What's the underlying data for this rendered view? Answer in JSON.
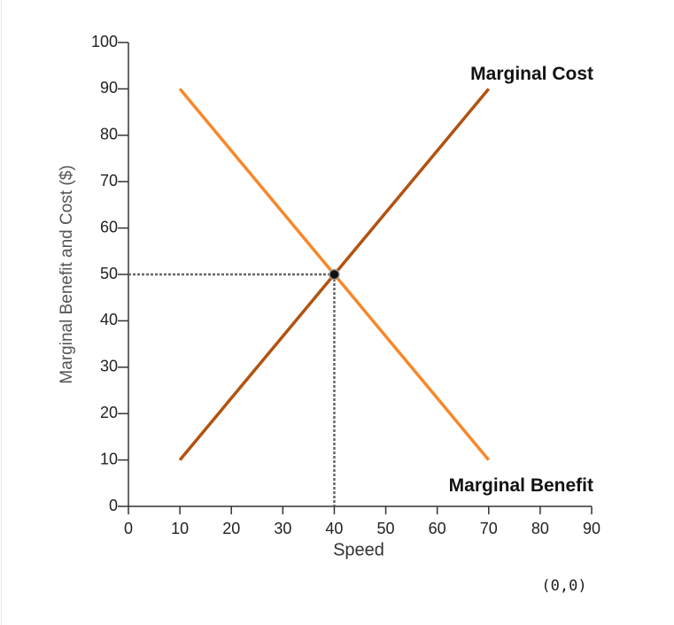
{
  "chart_data": {
    "type": "line",
    "xlabel": "Speed",
    "ylabel": "Marginal Benefit and Cost ($)",
    "x": [
      10,
      70
    ],
    "series": [
      {
        "name": "Marginal Benefit",
        "color": "#f7882b",
        "values": [
          90,
          10
        ]
      },
      {
        "name": "Marginal Cost",
        "color": "#b1530f",
        "values": [
          10,
          90
        ]
      }
    ],
    "equilibrium": {
      "x": 40,
      "y": 50
    },
    "xlim": [
      0,
      90
    ],
    "xticks": [
      0,
      10,
      20,
      30,
      40,
      50,
      60,
      70,
      80,
      90
    ],
    "ylim": [
      0,
      100
    ],
    "yticks": [
      0,
      10,
      20,
      30,
      40,
      50,
      60,
      70,
      80,
      90,
      100
    ],
    "coordinate_readout": "(0,0)"
  }
}
